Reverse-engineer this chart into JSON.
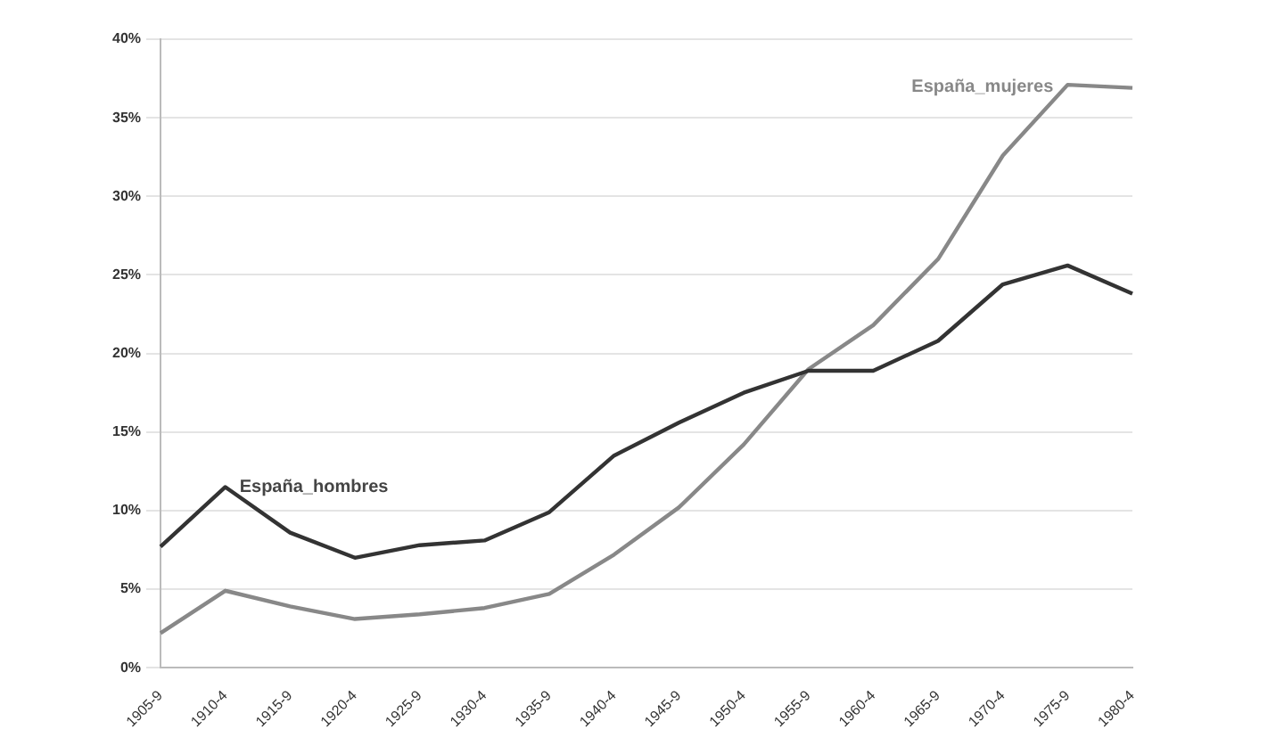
{
  "chart_data": {
    "type": "line",
    "categories": [
      "1905-9",
      "1910-4",
      "1915-9",
      "1920-4",
      "1925-9",
      "1930-4",
      "1935-9",
      "1940-4",
      "1945-9",
      "1950-4",
      "1955-9",
      "1960-4",
      "1965-9",
      "1970-4",
      "1975-9",
      "1980-4"
    ],
    "series": [
      {
        "color": "#333333",
        "values": [
          7.7,
          11.5,
          8.6,
          7.0,
          7.8,
          8.1,
          9.9,
          13.5,
          15.6,
          17.5,
          18.9,
          18.9,
          20.8,
          24.4,
          25.6,
          23.8
        ]
      },
      {
        "color": "#888888",
        "values": [
          2.2,
          4.9,
          3.9,
          3.1,
          3.4,
          3.8,
          4.7,
          7.2,
          10.2,
          14.2,
          19.0,
          21.8,
          26.0,
          32.6,
          37.1,
          36.9
        ]
      }
    ],
    "annotations": [
      {
        "text": "España_hombres",
        "x": "1910-4",
        "y": 11.5
      },
      {
        "text": "España_mujeres",
        "x": "1975-9",
        "y": 37.1
      }
    ],
    "ylim": [
      0,
      40
    ],
    "yticks": [
      {
        "value": 0,
        "label": "0%"
      },
      {
        "value": 5,
        "label": "5%"
      },
      {
        "value": 10,
        "label": "10%"
      },
      {
        "value": 15,
        "label": "15%"
      },
      {
        "value": 20,
        "label": "20%"
      },
      {
        "value": 25,
        "label": "25%"
      },
      {
        "value": 30,
        "label": "30%"
      },
      {
        "value": 35,
        "label": "35%"
      },
      {
        "value": 40,
        "label": "40%"
      }
    ],
    "grid": "y",
    "marker": "none",
    "line_style": "solid",
    "legend": false
  }
}
